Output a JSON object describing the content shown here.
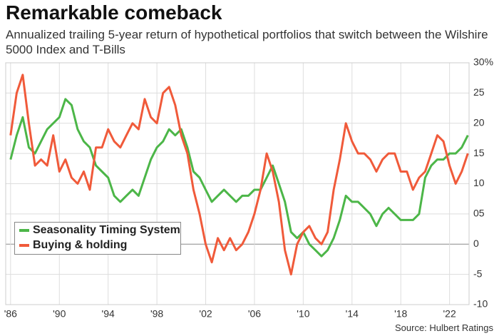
{
  "chart_data": {
    "type": "line",
    "title": "Remarkable comeback",
    "subtitle": "Annualized trailing 5-year return of hypothetical portfolios that switch between the Wilshire 5000 Index and T-Bills",
    "source": "Source: Hulbert Ratings",
    "x": [
      1986,
      1986.5,
      1987,
      1987.5,
      1988,
      1988.5,
      1989,
      1989.5,
      1990,
      1990.5,
      1991,
      1991.5,
      1992,
      1992.5,
      1993,
      1993.5,
      1994,
      1994.5,
      1995,
      1995.5,
      1996,
      1996.5,
      1997,
      1997.5,
      1998,
      1998.5,
      1999,
      1999.5,
      2000,
      2000.5,
      2001,
      2001.5,
      2002,
      2002.5,
      2003,
      2003.5,
      2004,
      2004.5,
      2005,
      2005.5,
      2006,
      2006.5,
      2007,
      2007.5,
      2008,
      2008.5,
      2009,
      2009.5,
      2010,
      2010.5,
      2011,
      2011.5,
      2012,
      2012.5,
      2013,
      2013.5,
      2014,
      2014.5,
      2015,
      2015.5,
      2016,
      2016.5,
      2017,
      2017.5,
      2018,
      2018.5,
      2019,
      2019.5,
      2020,
      2020.5,
      2021,
      2021.5,
      2022,
      2022.5,
      2023,
      2023.5
    ],
    "series": [
      {
        "name": "Seasonality Timing System",
        "color": "#4cb648",
        "values": [
          14,
          18,
          21,
          16,
          15,
          17,
          19,
          20,
          21,
          24,
          23,
          19,
          17,
          16,
          13,
          12,
          11,
          8,
          7,
          8,
          9,
          8,
          11,
          14,
          16,
          17,
          19,
          18,
          19,
          16,
          12,
          11,
          9,
          7,
          8,
          9,
          8,
          7,
          8,
          8,
          9,
          9,
          11,
          13,
          10,
          7,
          2,
          1,
          2,
          0,
          -1,
          -2,
          -1,
          1,
          4,
          8,
          7,
          7,
          6,
          5,
          3,
          5,
          6,
          5,
          4,
          4,
          4,
          5,
          11,
          13,
          14,
          14,
          15,
          15,
          16,
          18
        ]
      },
      {
        "name": "Buying & holding",
        "color": "#f05a3a",
        "values": [
          18,
          25,
          28,
          20,
          13,
          14,
          13,
          18,
          12,
          14,
          11,
          10,
          12,
          9,
          16,
          16,
          19,
          17,
          16,
          18,
          20,
          19,
          24,
          21,
          20,
          25,
          26,
          23,
          18,
          15,
          9,
          5,
          0,
          -3,
          1,
          -1,
          1,
          -1,
          0,
          2,
          5,
          9,
          15,
          12,
          7,
          -1,
          -5,
          0,
          2,
          3,
          1,
          0,
          2,
          9,
          14,
          20,
          17,
          15,
          15,
          14,
          12,
          14,
          15,
          15,
          12,
          12,
          9,
          11,
          12,
          15,
          18,
          17,
          13,
          10,
          12,
          15
        ]
      }
    ],
    "xlim": [
      1985.6,
      2023.6
    ],
    "xticks": [
      {
        "value": 1986,
        "label": "'86"
      },
      {
        "value": 1990,
        "label": "'90"
      },
      {
        "value": 1994,
        "label": "'94"
      },
      {
        "value": 1998,
        "label": "'98"
      },
      {
        "value": 2002,
        "label": "'02"
      },
      {
        "value": 2006,
        "label": "'06"
      },
      {
        "value": 2010,
        "label": "'10"
      },
      {
        "value": 2014,
        "label": "'14"
      },
      {
        "value": 2018,
        "label": "'18"
      },
      {
        "value": 2022,
        "label": "'22"
      }
    ],
    "ylim": [
      -10,
      30
    ],
    "yticks": [
      {
        "value": 30,
        "label": "30%"
      },
      25,
      20,
      15,
      10,
      {
        "value": 5,
        "label": "05"
      },
      0,
      -5,
      -10
    ],
    "grid": true
  }
}
